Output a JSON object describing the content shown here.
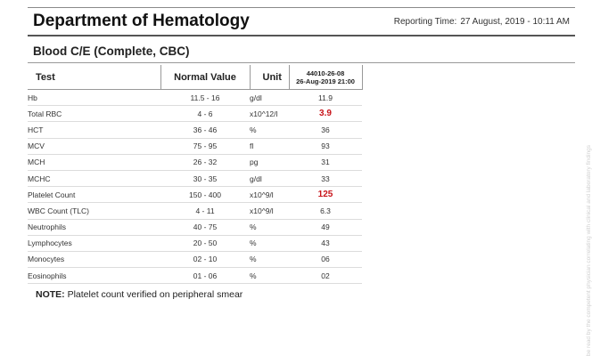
{
  "header": {
    "department": "Department of Hematology",
    "reporting_label": "Reporting Time:",
    "reporting_value": "27 August, 2019 - 10:11 AM"
  },
  "section": {
    "title": "Blood C/E (Complete, CBC)"
  },
  "table": {
    "headers": {
      "test": "Test",
      "normal": "Normal Value",
      "unit": "Unit",
      "sample_id": "44010-26-08",
      "sample_date": "26-Aug-2019 21:00"
    },
    "rows": [
      {
        "test": "Hb",
        "normal": "11.5 - 16",
        "unit": "g/dl",
        "result": "11.9",
        "flag": "normal"
      },
      {
        "test": "Total RBC",
        "normal": "4 - 6",
        "unit": "x10^12/l",
        "result": "3.9",
        "flag": "abnormal"
      },
      {
        "test": "HCT",
        "normal": "36 - 46",
        "unit": "%",
        "result": "36",
        "flag": "normal"
      },
      {
        "test": "MCV",
        "normal": "75 - 95",
        "unit": "fl",
        "result": "93",
        "flag": "normal"
      },
      {
        "test": "MCH",
        "normal": "26 - 32",
        "unit": "pg",
        "result": "31",
        "flag": "normal"
      },
      {
        "test": "MCHC",
        "normal": "30 - 35",
        "unit": "g/dl",
        "result": "33",
        "flag": "normal"
      },
      {
        "test": "Platelet Count",
        "normal": "150 - 400",
        "unit": "x10^9/l",
        "result": "125",
        "flag": "abnormal"
      },
      {
        "test": "WBC Count (TLC)",
        "normal": "4 - 11",
        "unit": "x10^9/l",
        "result": "6.3",
        "flag": "normal"
      },
      {
        "test": "Neutrophils",
        "normal": "40 - 75",
        "unit": "%",
        "result": "49",
        "flag": "normal"
      },
      {
        "test": "Lymphocytes",
        "normal": "20 - 50",
        "unit": "%",
        "result": "43",
        "flag": "normal"
      },
      {
        "test": "Monocytes",
        "normal": "02 - 10",
        "unit": "%",
        "result": "06",
        "flag": "normal"
      },
      {
        "test": "Eosinophils",
        "normal": "01 - 06",
        "unit": "%",
        "result": "02",
        "flag": "normal"
      }
    ]
  },
  "note": {
    "label": "NOTE:",
    "text": "Platelet count verified on peripheral smear"
  },
  "side_text": "be read by the competent physician correlating with clinical and laboratory findings",
  "colors": {
    "abnormal": "#c8141a"
  }
}
